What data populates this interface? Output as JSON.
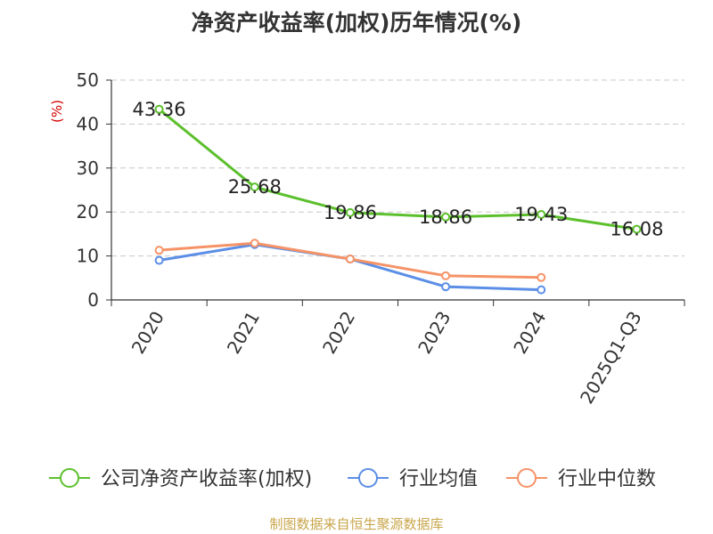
{
  "chart_data": {
    "type": "line",
    "title": "净资产收益率(加权)历年情况(%)",
    "ylabel": "(%)",
    "xlabel": "",
    "ylim": [
      0,
      50
    ],
    "yticks": [
      0,
      10,
      20,
      30,
      40,
      50
    ],
    "grid": true,
    "legend_position": "bottom",
    "categories": [
      "2020",
      "2021",
      "2022",
      "2023",
      "2024",
      "2025Q1-Q3"
    ],
    "series": [
      {
        "name": "公司净资产收益率(加权)",
        "color": "#5cc02d",
        "values": [
          43.36,
          25.68,
          19.86,
          18.86,
          19.43,
          16.08
        ],
        "labels": [
          "43.36",
          "25.68",
          "19.86",
          "18.86",
          "19.43",
          "16.08"
        ]
      },
      {
        "name": "行业均值",
        "color": "#5b8ee6",
        "values": [
          9.0,
          12.6,
          9.3,
          3.0,
          2.3,
          null
        ]
      },
      {
        "name": "行业中位数",
        "color": "#f59367",
        "values": [
          11.3,
          12.9,
          9.3,
          5.5,
          5.1,
          null
        ]
      }
    ]
  },
  "footer": {
    "source": "制图数据来自恒生聚源数据库"
  }
}
